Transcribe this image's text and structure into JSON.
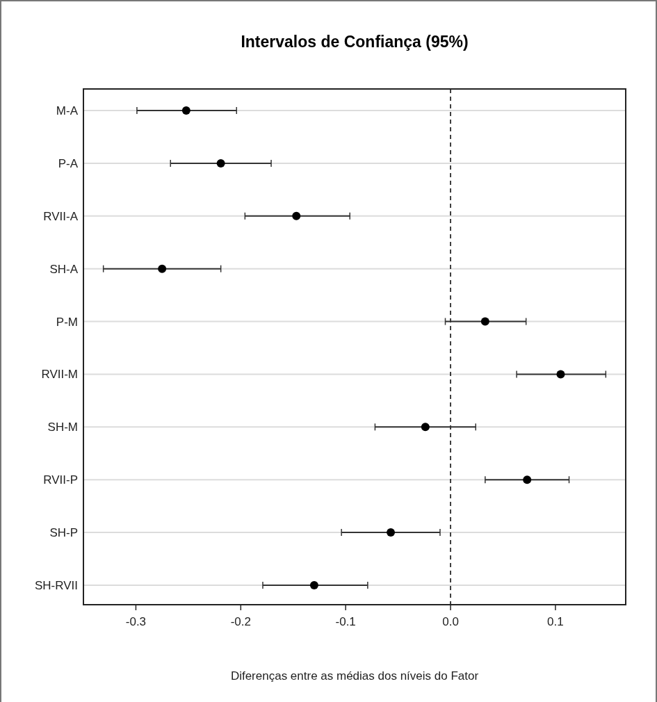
{
  "chart_data": {
    "type": "scatter",
    "orientation": "horizontal",
    "title": "Intervalos de Confiança (95%)",
    "xlabel": "Diferenças entre as médias dos níveis do Fator",
    "categories": [
      "M-A",
      "P-A",
      "RVII-A",
      "SH-A",
      "P-M",
      "RVII-M",
      "SH-M",
      "RVII-P",
      "SH-P",
      "SH-RVII"
    ],
    "values": [
      -0.252,
      -0.219,
      -0.147,
      -0.275,
      0.033,
      0.105,
      -0.024,
      0.073,
      -0.057,
      -0.13
    ],
    "errors": [
      [
        -0.299,
        -0.204
      ],
      [
        -0.267,
        -0.171
      ],
      [
        -0.196,
        -0.096
      ],
      [
        -0.331,
        -0.219
      ],
      [
        -0.005,
        0.072
      ],
      [
        0.063,
        0.148
      ],
      [
        -0.072,
        0.024
      ],
      [
        0.033,
        0.113
      ],
      [
        -0.104,
        -0.01
      ],
      [
        -0.179,
        -0.079
      ]
    ],
    "color": "#000000",
    "marker": "circle",
    "xlim": [
      -0.35,
      0.167
    ],
    "xticks": [
      -0.3,
      -0.2,
      -0.1,
      {
        "value": 0,
        "label": "0.0"
      },
      0.1
    ],
    "ref_lines": [
      {
        "axis": "x",
        "value": 0,
        "line_style": "dashed",
        "color": "#000000"
      }
    ],
    "grid": "y"
  }
}
